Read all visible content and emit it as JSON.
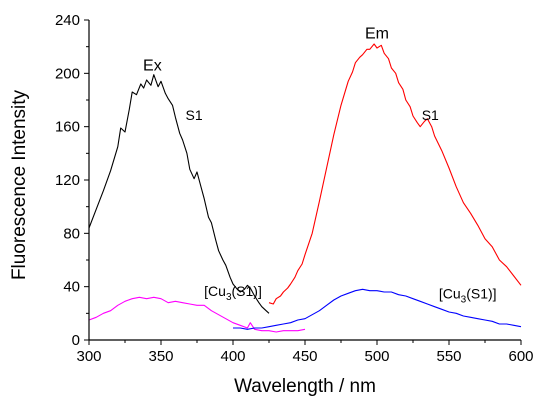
{
  "chart_data": {
    "type": "line",
    "title": "",
    "xlabel": "Wavelength / nm",
    "ylabel": "Fluorescence Intensity",
    "xlim": [
      300,
      600
    ],
    "ylim": [
      0,
      240
    ],
    "x_ticks": [
      300,
      350,
      400,
      450,
      500,
      550,
      600
    ],
    "y_ticks": [
      0,
      40,
      80,
      120,
      160,
      200,
      240
    ],
    "grid": false,
    "legend": "none",
    "annotations": [
      {
        "text": "Ex",
        "x": 344,
        "y": 202
      },
      {
        "text": "Em",
        "x": 500,
        "y": 226
      },
      {
        "text": "S1",
        "x": 373,
        "y": 165
      },
      {
        "text": "S1",
        "x": 537,
        "y": 165
      },
      {
        "text": "[Cu3(S1)]",
        "x": 400,
        "y": 33
      },
      {
        "text": "[Cu3(S1)]",
        "x": 563,
        "y": 31
      }
    ],
    "series": [
      {
        "color": "#000000",
        "x": [
          300,
          305,
          310,
          315,
          320,
          322,
          325,
          328,
          330,
          333,
          336,
          338,
          340,
          343,
          345,
          348,
          350,
          353,
          355,
          358,
          360,
          363,
          365,
          368,
          370,
          373,
          375,
          378,
          380,
          383,
          385,
          388,
          390,
          393,
          395,
          398,
          400,
          403,
          405,
          408,
          410,
          412,
          415,
          418,
          420,
          423,
          425
        ],
        "y": [
          84,
          98,
          112,
          127,
          145,
          159,
          156,
          173,
          186,
          184,
          192,
          189,
          195,
          191,
          199,
          190,
          194,
          185,
          181,
          176,
          167,
          155,
          150,
          140,
          128,
          121,
          126,
          114,
          106,
          92,
          88,
          75,
          67,
          60,
          56,
          47,
          42,
          38,
          36,
          38,
          41,
          39,
          33,
          28,
          25,
          22,
          20
        ]
      },
      {
        "color": "#ff0000",
        "x": [
          425,
          428,
          430,
          433,
          435,
          438,
          440,
          443,
          445,
          448,
          450,
          455,
          460,
          465,
          470,
          475,
          480,
          483,
          485,
          488,
          490,
          493,
          495,
          498,
          500,
          503,
          505,
          508,
          510,
          513,
          515,
          518,
          520,
          523,
          525,
          528,
          530,
          533,
          535,
          538,
          540,
          545,
          550,
          555,
          560,
          565,
          570,
          575,
          580,
          585,
          590,
          595,
          600
        ],
        "y": [
          28,
          27,
          31,
          33,
          36,
          39,
          42,
          47,
          52,
          57,
          64,
          80,
          104,
          129,
          154,
          176,
          194,
          201,
          208,
          212,
          214,
          218,
          218,
          222,
          219,
          221,
          215,
          211,
          204,
          200,
          193,
          188,
          180,
          175,
          168,
          163,
          160,
          164,
          166,
          160,
          153,
          142,
          129,
          115,
          103,
          95,
          86,
          76,
          70,
          60,
          55,
          48,
          41
        ]
      },
      {
        "color": "#ff00ff",
        "x": [
          300,
          305,
          310,
          315,
          320,
          325,
          330,
          335,
          340,
          345,
          350,
          355,
          360,
          365,
          370,
          375,
          380,
          385,
          390,
          395,
          400,
          405,
          410,
          412,
          415,
          420,
          425,
          430,
          435,
          440,
          445,
          450
        ],
        "y": [
          15,
          17,
          20,
          22,
          26,
          29,
          31,
          32,
          31,
          32,
          31,
          28,
          29,
          28,
          27,
          26,
          26,
          22,
          19,
          16,
          13,
          11,
          9,
          13,
          8,
          7,
          7,
          6,
          7,
          7,
          7,
          8
        ]
      },
      {
        "color": "#0000ff",
        "x": [
          400,
          405,
          410,
          415,
          420,
          425,
          430,
          435,
          440,
          445,
          450,
          455,
          460,
          465,
          470,
          475,
          480,
          485,
          490,
          495,
          500,
          505,
          510,
          515,
          520,
          525,
          530,
          535,
          540,
          545,
          550,
          555,
          560,
          565,
          570,
          575,
          580,
          585,
          590,
          595,
          600
        ],
        "y": [
          9,
          9,
          8,
          9,
          9,
          10,
          11,
          12,
          13,
          15,
          16,
          19,
          22,
          26,
          30,
          33,
          35,
          37,
          38,
          37,
          37,
          36,
          36,
          34,
          33,
          31,
          29,
          27,
          25,
          23,
          21,
          20,
          18,
          17,
          16,
          15,
          14,
          12,
          12,
          11,
          10
        ]
      }
    ]
  }
}
